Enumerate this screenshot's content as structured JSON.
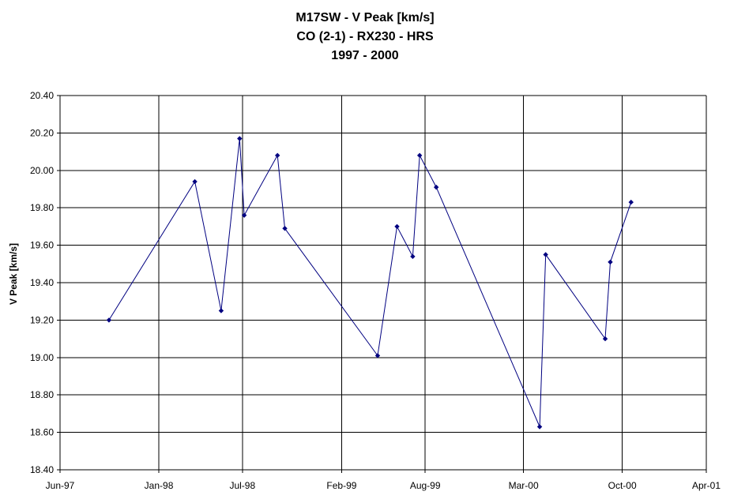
{
  "chart_data": {
    "type": "line",
    "title": [
      "M17SW - V Peak [km/s]",
      "CO (2-1) - RX230 - HRS",
      "1997 - 2000"
    ],
    "xlabel": "",
    "ylabel": "V Peak [km/s]",
    "ylim": [
      18.4,
      20.4
    ],
    "xlim": [
      "1997-06-01",
      "2001-04-01"
    ],
    "yticks": [
      "18.40",
      "18.60",
      "18.80",
      "19.00",
      "19.20",
      "19.40",
      "19.60",
      "19.80",
      "20.00",
      "20.20",
      "20.40"
    ],
    "xticks": [
      {
        "date": "1997-06-01",
        "label": "Jun-97"
      },
      {
        "date": "1998-01-01",
        "label": "Jan-98"
      },
      {
        "date": "1998-07-01",
        "label": "Jul-98"
      },
      {
        "date": "1999-02-01",
        "label": "Feb-99"
      },
      {
        "date": "1999-08-01",
        "label": "Aug-99"
      },
      {
        "date": "2000-03-01",
        "label": "Mar-00"
      },
      {
        "date": "2000-10-01",
        "label": "Oct-00"
      },
      {
        "date": "2001-04-01",
        "label": "Apr-01"
      }
    ],
    "grid": true,
    "legend": "none",
    "series": [
      {
        "color": "#000080",
        "points": [
          {
            "x": "1997-09-15",
            "y": 19.2
          },
          {
            "x": "1998-03-20",
            "y": 19.94
          },
          {
            "x": "1998-05-16",
            "y": 19.25
          },
          {
            "x": "1998-06-25",
            "y": 20.17
          },
          {
            "x": "1998-07-05",
            "y": 19.76
          },
          {
            "x": "1998-09-15",
            "y": 20.08
          },
          {
            "x": "1998-10-01",
            "y": 19.69
          },
          {
            "x": "1999-04-20",
            "y": 19.01
          },
          {
            "x": "1999-06-01",
            "y": 19.7
          },
          {
            "x": "1999-07-05",
            "y": 19.54
          },
          {
            "x": "1999-07-20",
            "y": 20.08
          },
          {
            "x": "1999-08-25",
            "y": 19.91
          },
          {
            "x": "2000-04-05",
            "y": 18.63
          },
          {
            "x": "2000-04-18",
            "y": 19.55
          },
          {
            "x": "2000-08-25",
            "y": 19.1
          },
          {
            "x": "2000-09-05",
            "y": 19.51
          },
          {
            "x": "2000-10-20",
            "y": 19.83
          }
        ]
      }
    ]
  }
}
